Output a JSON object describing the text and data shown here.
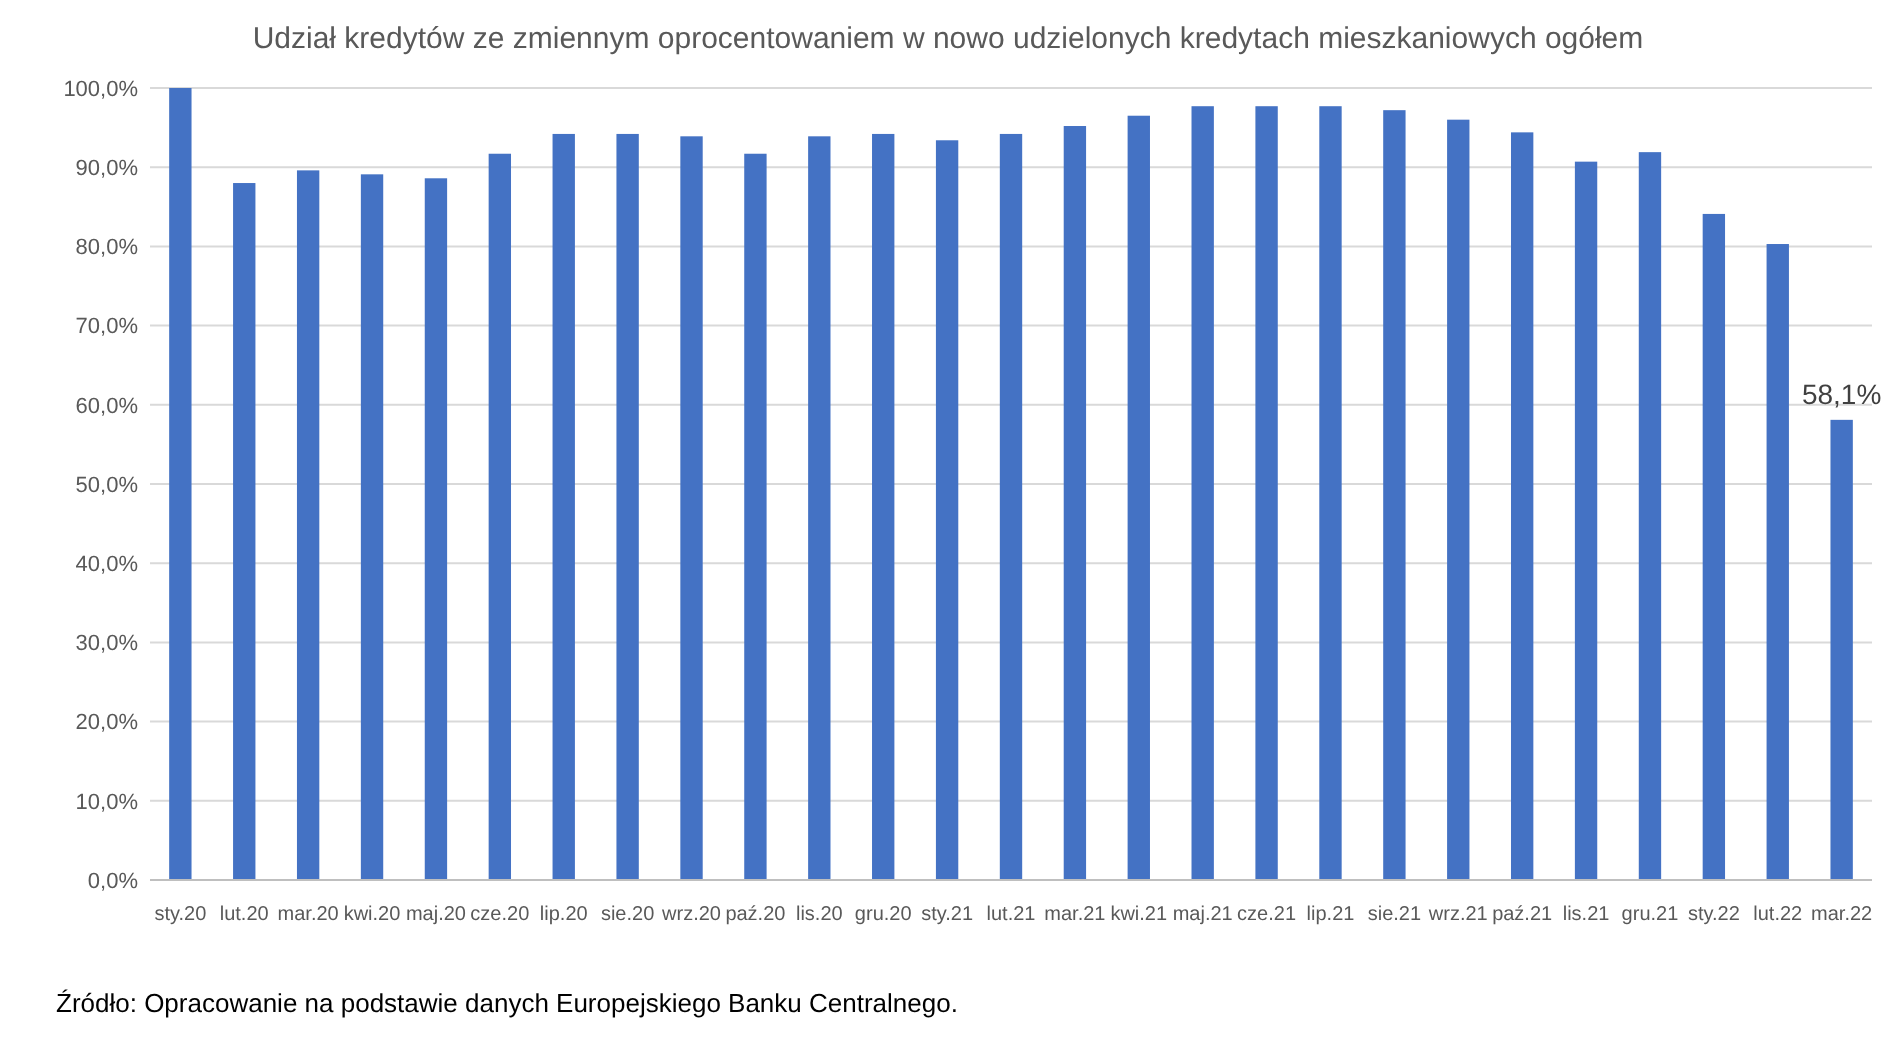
{
  "chart_data": {
    "type": "bar",
    "title": "Udział kredytów ze zmiennym oprocentowaniem w nowo udzielonych kredytach mieszkaniowych ogółem",
    "categories": [
      "sty.20",
      "lut.20",
      "mar.20",
      "kwi.20",
      "maj.20",
      "cze.20",
      "lip.20",
      "sie.20",
      "wrz.20",
      "paź.20",
      "lis.20",
      "gru.20",
      "sty.21",
      "lut.21",
      "mar.21",
      "kwi.21",
      "maj.21",
      "cze.21",
      "lip.21",
      "sie.21",
      "wrz.21",
      "paź.21",
      "lis.21",
      "gru.21",
      "sty.22",
      "lut.22",
      "mar.22"
    ],
    "values": [
      100,
      88,
      89.6,
      89.1,
      88.6,
      91.7,
      94.2,
      94.2,
      93.9,
      91.7,
      93.9,
      94.2,
      93.4,
      94.2,
      95.2,
      96.5,
      97.7,
      97.7,
      97.7,
      97.2,
      96.0,
      94.4,
      90.7,
      91.9,
      84.1,
      80.3,
      58.1
    ],
    "value_labels": [
      null,
      null,
      null,
      null,
      null,
      null,
      null,
      null,
      null,
      null,
      null,
      null,
      null,
      null,
      null,
      null,
      null,
      null,
      null,
      null,
      null,
      null,
      null,
      null,
      null,
      null,
      "58,1%"
    ],
    "color": "#4472c4",
    "ylim": [
      0,
      100
    ],
    "yticks": [
      {
        "value": 0,
        "label": "0,0%"
      },
      {
        "value": 10,
        "label": "10,0%"
      },
      {
        "value": 20,
        "label": "20,0%"
      },
      {
        "value": 30,
        "label": "30,0%"
      },
      {
        "value": 40,
        "label": "40,0%"
      },
      {
        "value": 50,
        "label": "50,0%"
      },
      {
        "value": 60,
        "label": "60,0%"
      },
      {
        "value": 70,
        "label": "70,0%"
      },
      {
        "value": 80,
        "label": "80,0%"
      },
      {
        "value": 90,
        "label": "90,0%"
      },
      {
        "value": 100,
        "label": "100,0%"
      }
    ],
    "grid": "y",
    "annotations": [
      "Źródło: Opracowanie na podstawie danych Europejskiego Banku Centralnego."
    ]
  }
}
